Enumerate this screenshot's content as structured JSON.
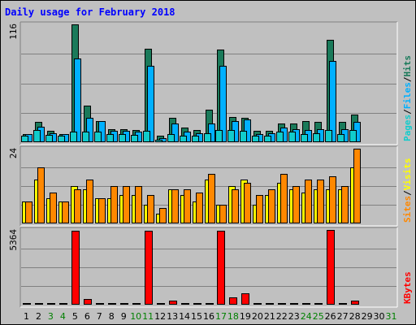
{
  "chart_data": {
    "type": "bar",
    "title": "Daily usage for February 2018",
    "days": [
      "1",
      "2",
      "3",
      "4",
      "5",
      "6",
      "7",
      "8",
      "9",
      "10",
      "11",
      "12",
      "13",
      "14",
      "15",
      "16",
      "17",
      "18",
      "19",
      "20",
      "21",
      "22",
      "23",
      "24",
      "25",
      "26",
      "27",
      "28",
      "29",
      "30",
      "31"
    ],
    "weekend_days": [
      "3",
      "4",
      "10",
      "11",
      "17",
      "18",
      "24",
      "25",
      "31"
    ],
    "colors": {
      "hits": "#1a7a5a",
      "files": "#00b0ff",
      "pages": "#11cccc",
      "visits": "#ffff00",
      "sites": "#ff8800",
      "kbytes": "#ff0000",
      "weekday_label": "#000000",
      "weekend_label": "#008000",
      "title": "#0000ff"
    },
    "panels": [
      {
        "id": "hits-files-pages",
        "max_label": "116",
        "ylim": [
          0,
          116
        ],
        "legend": [
          {
            "text": "Pages",
            "color": "#11cccc"
          },
          {
            "text": "Files",
            "color": "#00b0ff"
          },
          {
            "text": "Hits",
            "color": "#1a7a5a"
          }
        ],
        "series": [
          {
            "name": "Hits",
            "values": [
              8,
              20,
              11,
              8,
              116,
              36,
              21,
              13,
              13,
              12,
              92,
              6,
              24,
              14,
              12,
              32,
              91,
              25,
              24,
              11,
              11,
              18,
              18,
              21,
              20,
              101,
              20,
              27,
              0,
              0,
              0
            ]
          },
          {
            "name": "Files",
            "values": [
              8,
              15,
              9,
              8,
              82,
              24,
              21,
              11,
              11,
              10,
              75,
              4,
              18,
              10,
              9,
              18,
              75,
              21,
              22,
              8,
              9,
              14,
              13,
              12,
              13,
              80,
              13,
              20,
              0,
              0,
              0
            ]
          },
          {
            "name": "Pages",
            "values": [
              6,
              12,
              7,
              6,
              10,
              10,
              10,
              8,
              8,
              7,
              11,
              2,
              8,
              6,
              6,
              9,
              12,
              12,
              11,
              6,
              6,
              10,
              10,
              8,
              9,
              12,
              8,
              12,
              0,
              0,
              0
            ]
          }
        ]
      },
      {
        "id": "visits-sites",
        "max_label": "24",
        "ylim": [
          0,
          24
        ],
        "legend": [
          {
            "text": "Sites",
            "color": "#ff8800"
          },
          {
            "text": "Visits",
            "color": "#ffff00"
          }
        ],
        "series": [
          {
            "name": "Visits",
            "values": [
              7,
              14,
              8,
              7,
              12,
              11,
              8,
              8,
              9,
              9,
              6,
              3,
              11,
              9,
              7,
              14,
              6,
              12,
              14,
              6,
              9,
              13,
              11,
              10,
              11,
              11,
              11,
              18,
              0,
              0,
              0
            ]
          },
          {
            "name": "Sites",
            "values": [
              7,
              18,
              10,
              7,
              11,
              14,
              8,
              12,
              12,
              12,
              9,
              5,
              11,
              11,
              10,
              16,
              6,
              11,
              13,
              9,
              11,
              16,
              12,
              14,
              14,
              15,
              12,
              24,
              0,
              0,
              0
            ]
          }
        ]
      },
      {
        "id": "kbytes",
        "max_label": "5364",
        "ylim": [
          0,
          5364
        ],
        "legend": [
          {
            "text": "KBytes",
            "color": "#ff0000"
          }
        ],
        "series": [
          {
            "name": "KBytes",
            "values": [
              60,
              60,
              60,
              60,
              5300,
              420,
              60,
              60,
              60,
              60,
              5300,
              60,
              320,
              60,
              60,
              60,
              5300,
              500,
              800,
              60,
              60,
              60,
              60,
              60,
              60,
              5364,
              60,
              320,
              0,
              0,
              0
            ]
          }
        ]
      }
    ]
  }
}
